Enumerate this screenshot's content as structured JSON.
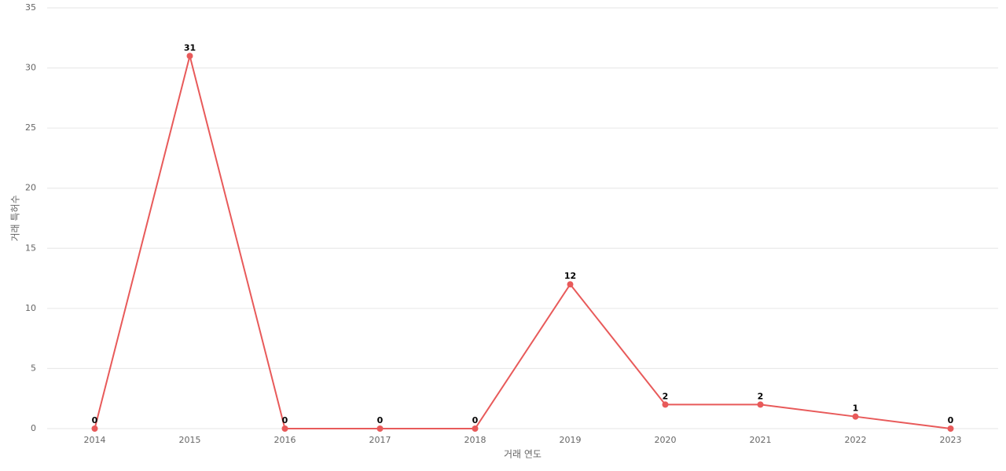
{
  "chart_data": {
    "type": "line",
    "x_label": "거래 연도",
    "y_label": "거래 특허수",
    "categories": [
      "2014",
      "2015",
      "2016",
      "2017",
      "2018",
      "2019",
      "2020",
      "2021",
      "2022",
      "2023"
    ],
    "series": [
      {
        "name": "거래 특허수",
        "color": "#e85a5a",
        "values": [
          0,
          31,
          0,
          0,
          0,
          12,
          2,
          2,
          1,
          0
        ]
      }
    ],
    "ylim": [
      0,
      35
    ],
    "yticks": [
      0,
      5,
      10,
      15,
      20,
      25,
      30,
      35
    ],
    "grid": true
  }
}
